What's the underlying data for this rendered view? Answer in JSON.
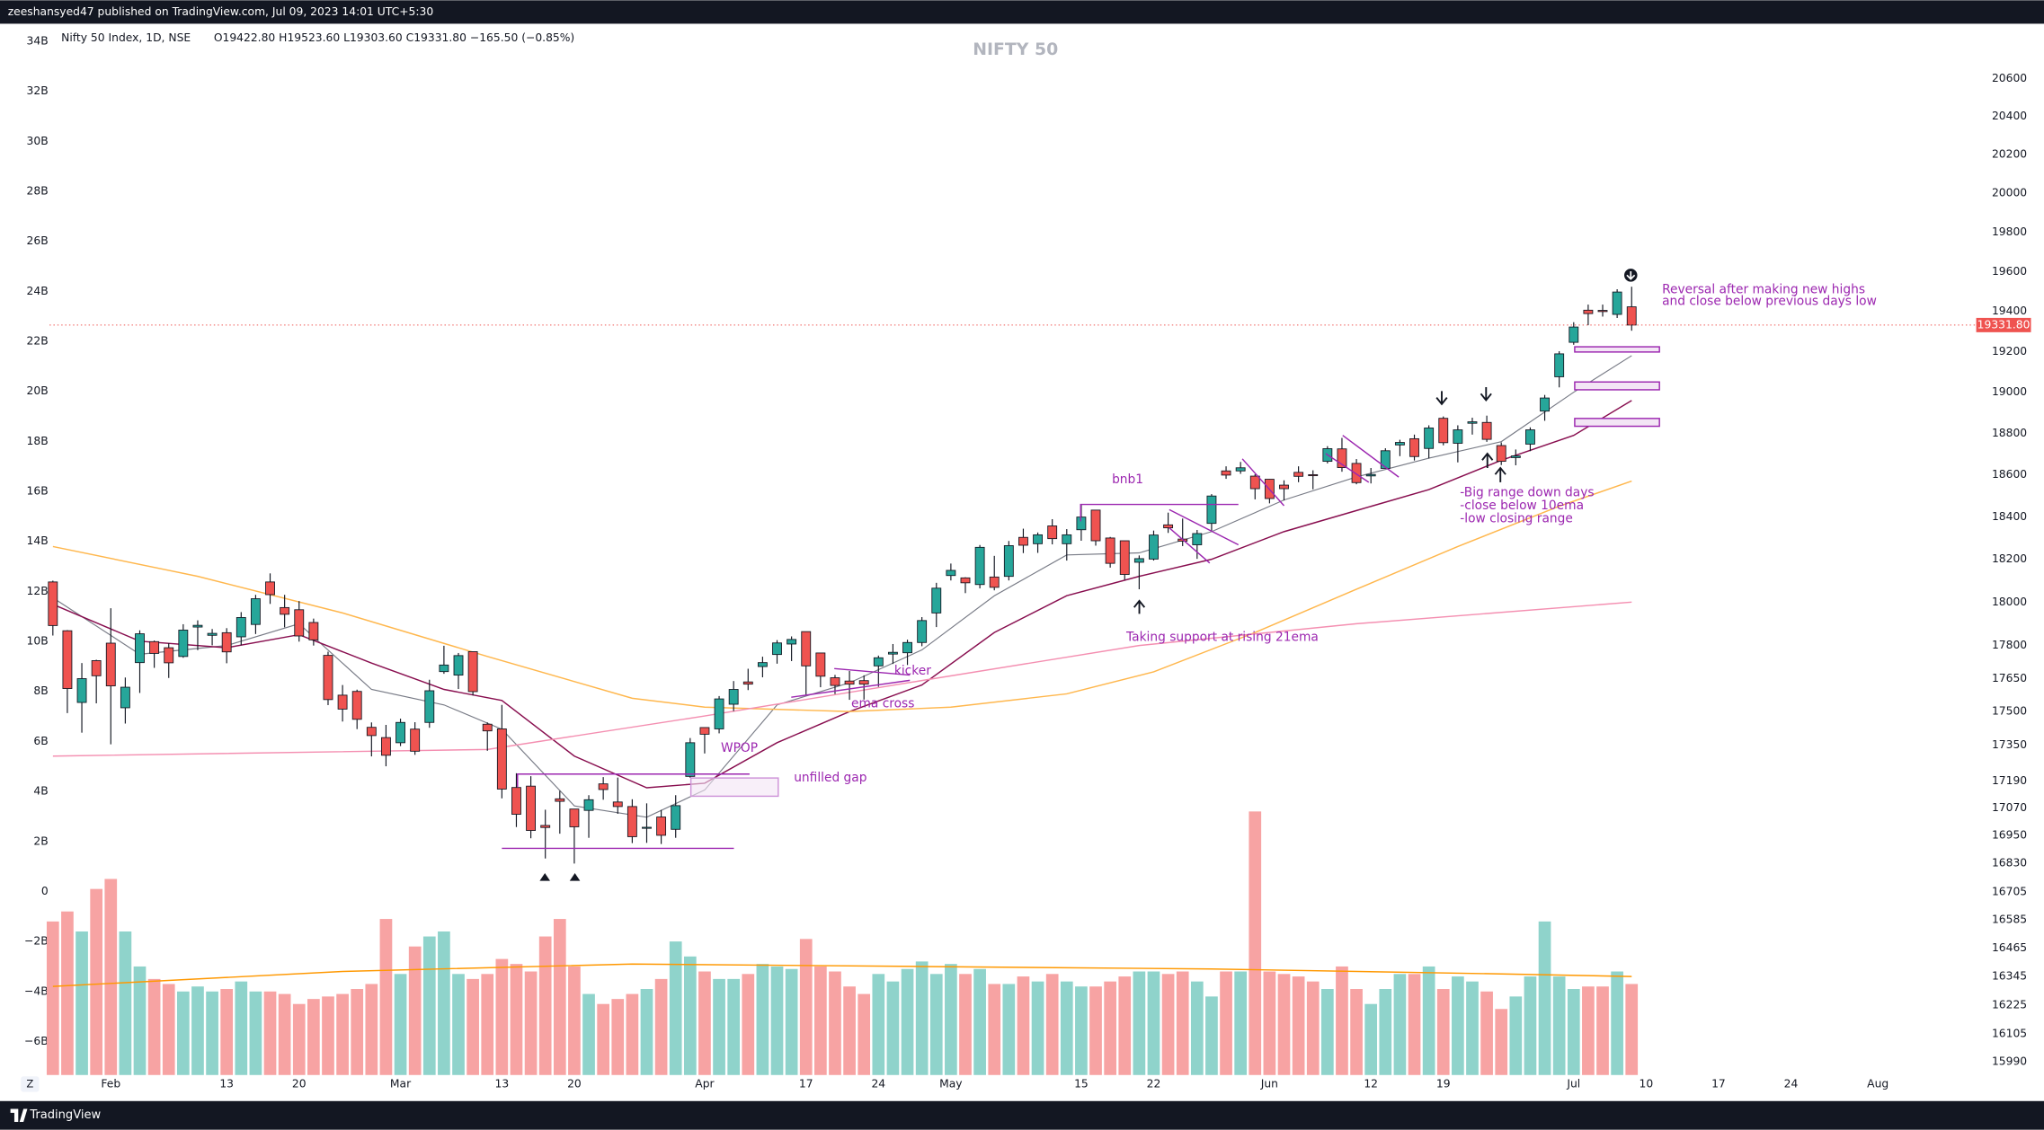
{
  "chart_data": {
    "type": "candlestick",
    "publisher": "zeeshansyed47 published on TradingView.com, Jul 09, 2023 14:01 UTC+5:30",
    "symbol_line": "Nifty 50 Index, 1D, NSE",
    "ohlc_line": "O19422.80  H19523.60  L19303.60  C19331.80  −165.50 (−0.85%)",
    "watermark": "NIFTY 50",
    "footer": "TradingView",
    "log_scale": true,
    "grid": false,
    "up_color": "#26a69a",
    "down_color": "#ef5350",
    "volume_up_color": "#8fd3cb",
    "volume_down_color": "#f7a3a3",
    "ylim": [
      15936,
      20892
    ],
    "yticks": [
      20600,
      20400,
      20200,
      20000,
      19800,
      19600,
      19400,
      19200,
      19000,
      18800,
      18600,
      18400,
      18200,
      18000,
      17800,
      17650,
      17500,
      17350,
      17190,
      17070,
      16950,
      16830,
      16705,
      16585,
      16465,
      16345,
      16225,
      16105,
      15990
    ],
    "y2lim": [
      -7.34,
      34.7
    ],
    "y2ticks": [
      {
        "value": 34,
        "label": "34B"
      },
      {
        "value": 32,
        "label": "32B"
      },
      {
        "value": 30,
        "label": "30B"
      },
      {
        "value": 28,
        "label": "28B"
      },
      {
        "value": 26,
        "label": "26B"
      },
      {
        "value": 24,
        "label": "24B"
      },
      {
        "value": 22,
        "label": "22B"
      },
      {
        "value": 20,
        "label": "20B"
      },
      {
        "value": 18,
        "label": "18B"
      },
      {
        "value": 16,
        "label": "16B"
      },
      {
        "value": 14,
        "label": "14B"
      },
      {
        "value": 12,
        "label": "12B"
      },
      {
        "value": 10,
        "label": "10B"
      },
      {
        "value": 8,
        "label": "8B"
      },
      {
        "value": 6,
        "label": "6B"
      },
      {
        "value": 4,
        "label": "4B"
      },
      {
        "value": 2,
        "label": "2B"
      },
      0,
      {
        "value": -2,
        "label": "−2B"
      },
      {
        "value": -4,
        "label": "−4B"
      },
      {
        "value": -6,
        "label": "−6B"
      }
    ],
    "xlim": [
      -0.23,
      131.8
    ],
    "xticks": [
      {
        "value": 4,
        "label": "Feb"
      },
      {
        "value": 12,
        "label": "13"
      },
      {
        "value": 17,
        "label": "20"
      },
      {
        "value": 24,
        "label": "Mar"
      },
      {
        "value": 31,
        "label": "13"
      },
      {
        "value": 36,
        "label": "20"
      },
      {
        "value": 45,
        "label": "Apr"
      },
      {
        "value": 52,
        "label": "17"
      },
      {
        "value": 57,
        "label": "24"
      },
      {
        "value": 62,
        "label": "May"
      },
      {
        "value": 71,
        "label": "15"
      },
      {
        "value": 76,
        "label": "22"
      },
      {
        "value": 84,
        "label": "Jun"
      },
      {
        "value": 91,
        "label": "12"
      },
      {
        "value": 96,
        "label": "19"
      },
      {
        "value": 105,
        "label": "Jul"
      },
      {
        "value": 110,
        "label": "10"
      },
      {
        "value": 115,
        "label": "17"
      },
      {
        "value": 120,
        "label": "24"
      },
      {
        "value": 126,
        "label": "Aug"
      }
    ],
    "last_price": {
      "value": 19331.8,
      "label": "19331.80"
    },
    "open": [
      18094,
      17868,
      17541,
      17731,
      17811,
      17517,
      17722,
      17818,
      17790,
      17750,
      17885,
      17847,
      17859,
      17840,
      17897,
      18094,
      17975,
      17965,
      17906,
      17755,
      17574,
      17591,
      17429,
      17383,
      17360,
      17421,
      17451,
      17681,
      17665,
      17772,
      17443,
      17422,
      17161,
      17167,
      16994,
      17111,
      17066,
      17060,
      17177,
      17097,
      17077,
      16984,
      17031,
      16977,
      17210,
      17428,
      17422,
      17533,
      17634,
      17704,
      17759,
      17807,
      17864,
      17766,
      17653,
      17638,
      17640,
      17707,
      17761,
      17767,
      17814,
      17950,
      18124,
      18113,
      18082,
      18117,
      18120,
      18303,
      18273,
      18357,
      18273,
      18339,
      18432,
      18300,
      18287,
      18186,
      18201,
      18362,
      18295,
      18268,
      18369,
      18619,
      18619,
      18594,
      18579,
      18551,
      18612,
      18601,
      18665,
      18725,
      18655,
      18595,
      18631,
      18744,
      18774,
      18727,
      18873,
      18752,
      18849,
      18853,
      18741,
      18683,
      18748,
      18908,
      19076,
      19246,
      19406,
      19405,
      19385,
      19422.8
    ],
    "high": [
      18100,
      17871,
      17720,
      17735,
      17972,
      17654,
      17870,
      17823,
      17811,
      17898,
      17916,
      17876,
      17880,
      17954,
      18034,
      18134,
      18034,
      18005,
      17924,
      17772,
      17620,
      17599,
      17451,
      17440,
      17468,
      17452,
      17644,
      17799,
      17766,
      17772,
      17451,
      17530,
      17224,
      17211,
      17063,
      17146,
      17066,
      17127,
      17207,
      17205,
      17109,
      17091,
      17062,
      17127,
      17381,
      17428,
      17570,
      17638,
      17694,
      17749,
      17825,
      17842,
      17864,
      17766,
      17666,
      17684,
      17664,
      17754,
      17807,
      17827,
      17931,
      18090,
      18180,
      18116,
      18267,
      18216,
      18286,
      18344,
      18326,
      18389,
      18342,
      18458,
      18432,
      18305,
      18287,
      18218,
      18335,
      18420,
      18392,
      18338,
      18508,
      18641,
      18662,
      18603,
      18580,
      18574,
      18641,
      18622,
      18738,
      18778,
      18676,
      18633,
      18728,
      18769,
      18794,
      18839,
      18882,
      18839,
      18876,
      18886,
      18756,
      18722,
      18829,
      18987,
      19202,
      19346,
      19434,
      19434,
      19511,
      19523.6
    ],
    "low": [
      17846,
      17493,
      17405,
      17537,
      17353,
      17446,
      17584,
      17698,
      17652,
      17744,
      17779,
      17801,
      17719,
      17801,
      17853,
      17992,
      17884,
      17818,
      17800,
      17529,
      17455,
      17421,
      17299,
      17255,
      17345,
      17306,
      17427,
      17671,
      17602,
      17573,
      17324,
      17113,
      16987,
      16938,
      16850,
      16958,
      16828,
      16940,
      17107,
      17045,
      16917,
      16918,
      16913,
      16940,
      17204,
      17312,
      17402,
      17502,
      17597,
      17655,
      17717,
      17729,
      17574,
      17610,
      17579,
      17553,
      17554,
      17612,
      17716,
      17711,
      17797,
      17885,
      18101,
      18042,
      18064,
      18055,
      18101,
      18229,
      18230,
      18270,
      18194,
      18287,
      18264,
      18161,
      18104,
      18060,
      18194,
      18324,
      18262,
      18202,
      18333,
      18581,
      18605,
      18483,
      18464,
      18478,
      18565,
      18531,
      18655,
      18615,
      18555,
      18559,
      18631,
      18690,
      18669,
      18679,
      18742,
      18660,
      18794,
      18759,
      18647,
      18646,
      18714,
      18861,
      19024,
      19234,
      19331,
      19374,
      19367,
      19303.6
    ],
    "close": [
      17892,
      17604,
      17649,
      17662,
      17616,
      17610,
      17854,
      17764,
      17721,
      17871,
      17893,
      17856,
      17771,
      17929,
      18016,
      18035,
      17944,
      17844,
      17826,
      17554,
      17511,
      17465,
      17392,
      17304,
      17451,
      17322,
      17594,
      17711,
      17754,
      17590,
      17413,
      17154,
      17043,
      16972,
      16985,
      17100,
      16988,
      17107,
      17152,
      17077,
      16945,
      16986,
      16951,
      17081,
      17360,
      17398,
      17557,
      17600,
      17624,
      17722,
      17812,
      17828,
      17707,
      17660,
      17618,
      17624,
      17624,
      17744,
      17769,
      17814,
      17915,
      18065,
      18148,
      18090,
      18256,
      18069,
      18264,
      18266,
      18315,
      18297,
      18315,
      18399,
      18287,
      18181,
      18129,
      18203,
      18314,
      18348,
      18285,
      18321,
      18499,
      18599,
      18634,
      18534,
      18487,
      18534,
      18593,
      18599,
      18726,
      18635,
      18563,
      18602,
      18716,
      18756,
      18688,
      18826,
      18755,
      18817,
      18856,
      18771,
      18665,
      18691,
      18817,
      18972,
      19189,
      19322,
      19389,
      19399,
      19497,
      19331.8
    ],
    "volume": [
      -1.2,
      -0.8,
      -1.6,
      0.1,
      0.5,
      -1.6,
      -3.0,
      -3.5,
      -3.7,
      -4.0,
      -3.8,
      -4.0,
      -3.9,
      -3.6,
      -4.0,
      -4.0,
      -4.1,
      -4.5,
      -4.3,
      -4.2,
      -4.1,
      -3.9,
      -3.7,
      -1.1,
      -3.3,
      -2.2,
      -1.8,
      -1.6,
      -3.3,
      -3.5,
      -3.3,
      -2.7,
      -2.9,
      -3.2,
      -1.8,
      -1.1,
      -3.0,
      -4.1,
      -4.5,
      -4.3,
      -4.1,
      -3.9,
      -3.5,
      -2.0,
      -2.6,
      -3.2,
      -3.5,
      -3.5,
      -3.3,
      -2.9,
      -3.0,
      -3.1,
      -1.9,
      -3.0,
      -3.2,
      -3.8,
      -4.1,
      -3.3,
      -3.6,
      -3.1,
      -2.8,
      -3.3,
      -2.9,
      -3.3,
      -3.1,
      -3.7,
      -3.7,
      -3.4,
      -3.6,
      -3.3,
      -3.6,
      -3.8,
      -3.8,
      -3.6,
      -3.4,
      -3.2,
      -3.2,
      -3.3,
      -3.2,
      -3.6,
      -4.2,
      -3.2,
      -3.2,
      3.2,
      -3.2,
      -3.3,
      -3.4,
      -3.6,
      -3.9,
      -3.0,
      -3.9,
      -4.5,
      -3.9,
      -3.3,
      -3.3,
      -3.0,
      -3.9,
      -3.4,
      -3.6,
      -4.0,
      -4.7,
      -4.2,
      -3.4,
      -1.2,
      -3.4,
      -3.9,
      -3.8,
      -3.8,
      -3.2,
      -3.7
    ],
    "indicators": [
      {
        "color": "#787b86",
        "x": [
          0,
          6,
          12,
          17,
          22,
          27,
          31,
          36,
          41,
          45,
          50,
          55,
          60,
          65,
          70,
          75,
          80,
          85,
          90,
          95,
          100,
          105,
          109
        ],
        "values": [
          18020,
          17760,
          17800,
          17900,
          17600,
          17530,
          17420,
          17080,
          17030,
          17150,
          17530,
          17630,
          17780,
          18030,
          18220,
          18230,
          18330,
          18480,
          18590,
          18680,
          18760,
          19000,
          19180
        ]
      },
      {
        "color": "#880e4f",
        "x": [
          0,
          6,
          12,
          17,
          22,
          27,
          31,
          36,
          41,
          45,
          50,
          55,
          60,
          65,
          70,
          75,
          80,
          85,
          90,
          95,
          100,
          105,
          109
        ],
        "values": [
          17990,
          17820,
          17790,
          17850,
          17720,
          17600,
          17550,
          17300,
          17160,
          17180,
          17360,
          17500,
          17620,
          17860,
          18030,
          18120,
          18200,
          18330,
          18430,
          18530,
          18670,
          18790,
          18960
        ]
      },
      {
        "color": "#ffb74d",
        "x": [
          0,
          10,
          20,
          30,
          40,
          45,
          55,
          62,
          70,
          76,
          83,
          90,
          97,
          104,
          109
        ],
        "values": [
          18260,
          18120,
          17950,
          17750,
          17560,
          17520,
          17500,
          17520,
          17580,
          17680,
          17860,
          18060,
          18260,
          18450,
          18570
        ]
      },
      {
        "color": "#f48fb1",
        "x": [
          0,
          30,
          45,
          60,
          75,
          90,
          109
        ],
        "values": [
          17300,
          17330,
          17480,
          17640,
          17800,
          17900,
          18000
        ]
      }
    ],
    "volume_ma": {
      "color": "#ff9800",
      "x": [
        0,
        20,
        40,
        60,
        80,
        100,
        109
      ],
      "values": [
        -3.8,
        -3.2,
        -2.9,
        -3.0,
        -3.1,
        -3.3,
        -3.4
      ]
    },
    "annotations": {
      "bnb1": "bnb1",
      "kicker": "kicker",
      "ema_cross": "ema cross",
      "wpop": "WPOP",
      "gap": "unfilled gap",
      "support": "Taking support at rising 21ema",
      "notes": [
        "-Big range down days",
        "-close below 10ema",
        "-low closing range"
      ],
      "reversal": [
        "Reversal after making new highs",
        "and close below previous days low"
      ]
    }
  }
}
